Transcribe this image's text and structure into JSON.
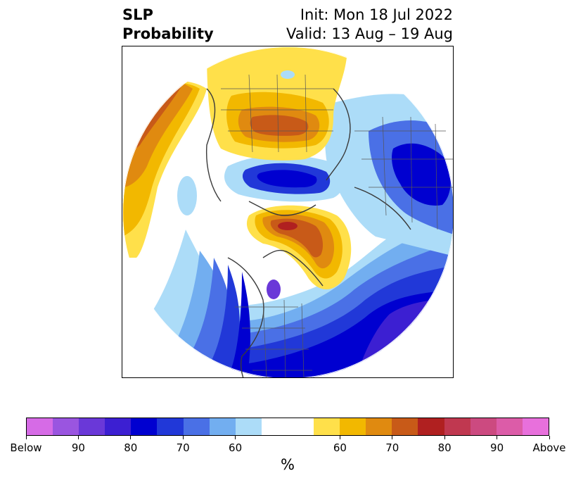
{
  "header": {
    "title_line1": "SLP",
    "title_line2": "Probability",
    "init_text": "Init: Mon 18 Jul 2022",
    "valid_text": "Valid: 13 Aug – 19 Aug"
  },
  "colorbar": {
    "unit": "%",
    "segments": [
      {
        "category": "below",
        "color": "#d66be6"
      },
      {
        "category": "below",
        "color": "#9a55e0"
      },
      {
        "category": "below",
        "color": "#6a38d8"
      },
      {
        "category": "below",
        "color": "#3c1fd2"
      },
      {
        "category": "below",
        "color": "#0000d0"
      },
      {
        "category": "below",
        "color": "#2138d8"
      },
      {
        "category": "below",
        "color": "#4a70e6"
      },
      {
        "category": "below",
        "color": "#72aef0"
      },
      {
        "category": "below",
        "color": "#acdcf8"
      },
      {
        "category": "neutral",
        "color": "#ffffff"
      },
      {
        "category": "neutral",
        "color": "#ffffff"
      },
      {
        "category": "above",
        "color": "#ffe04a"
      },
      {
        "category": "above",
        "color": "#f2b800"
      },
      {
        "category": "above",
        "color": "#e08a10"
      },
      {
        "category": "above",
        "color": "#c85a18"
      },
      {
        "category": "above",
        "color": "#b02020"
      },
      {
        "category": "above",
        "color": "#c03850"
      },
      {
        "category": "above",
        "color": "#cc4a80"
      },
      {
        "category": "above",
        "color": "#dc5ca8"
      },
      {
        "category": "above",
        "color": "#e870dc"
      }
    ],
    "tick_labels": [
      "Below",
      "90",
      "80",
      "70",
      "60",
      "60",
      "70",
      "80",
      "90",
      "Above"
    ],
    "tick_boundary_index": [
      0,
      2,
      4,
      6,
      8,
      12,
      14,
      16,
      18,
      20
    ]
  }
}
